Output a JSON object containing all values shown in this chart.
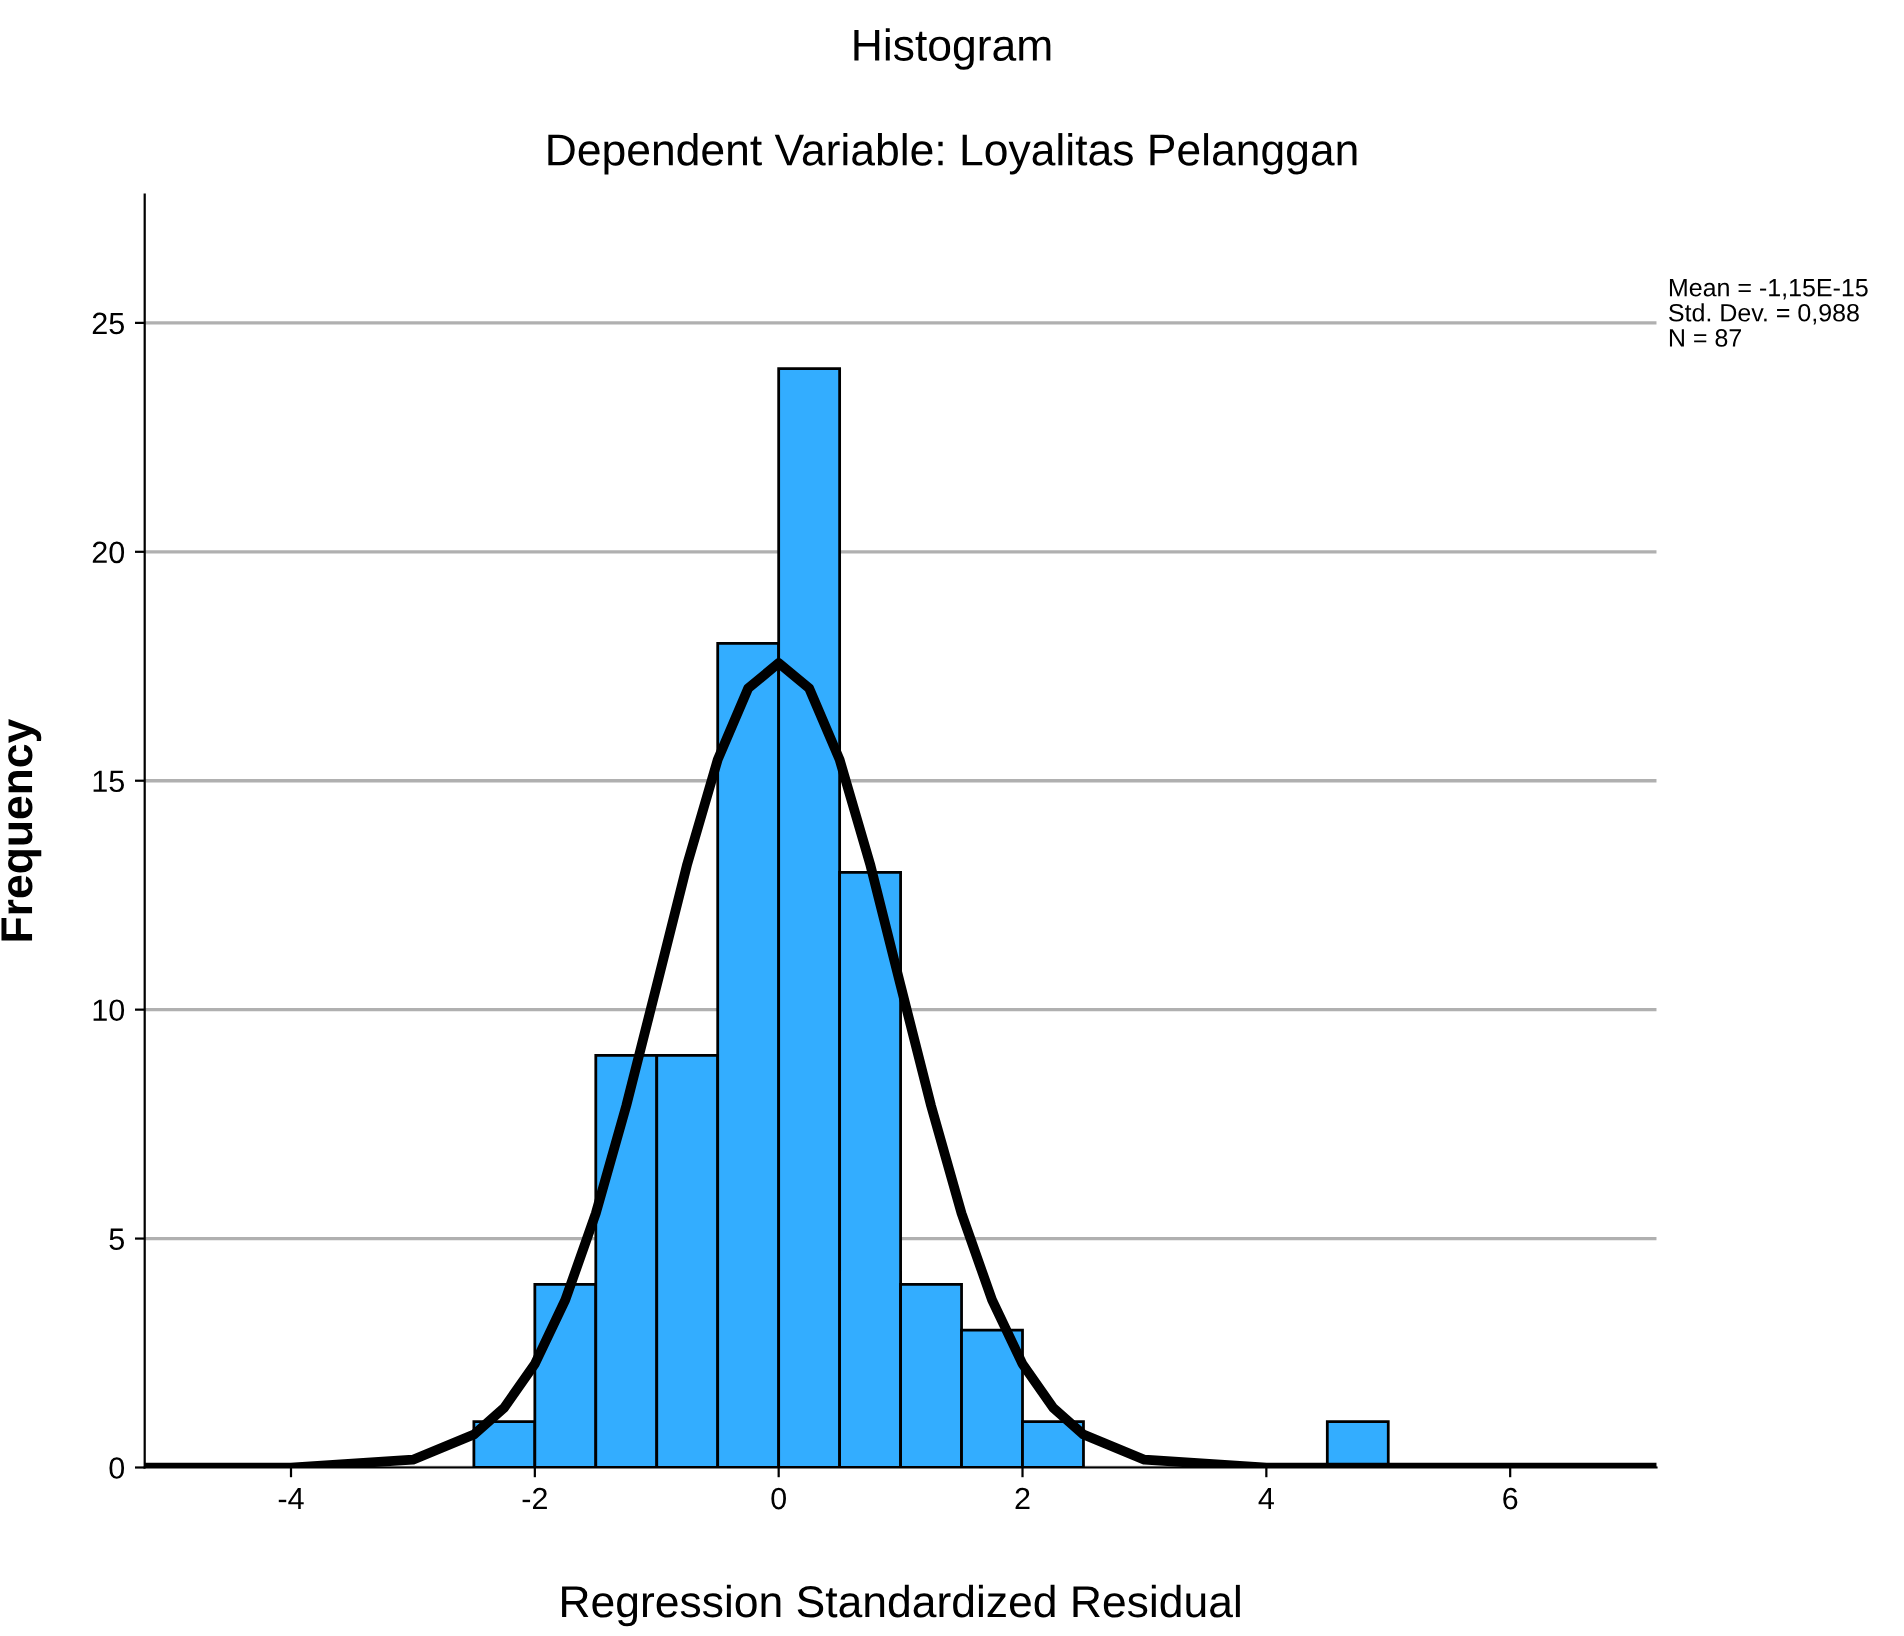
{
  "chart_data": {
    "type": "histogram",
    "title": "Histogram",
    "subtitle": "Dependent Variable: Loyalitas Pelanggan",
    "xlabel": "Regression Standardized Residual",
    "ylabel": "Frequency",
    "annotations": [
      "Mean = -1,15E-15\nStd. Dev. = 0,988\nN = 87"
    ],
    "series": [
      {
        "color": "#33adff",
        "bins": [
          -2.5,
          -2,
          -1.5,
          -1,
          -0.5,
          0,
          0.5,
          1,
          1.5,
          2,
          2.5,
          3,
          3.5,
          4,
          4.5,
          5
        ],
        "values": [
          1,
          4,
          9,
          9,
          18,
          24,
          13,
          4,
          3,
          1,
          0,
          0,
          0,
          0,
          1
        ]
      },
      {
        "type": "line",
        "color": "#000000",
        "x": [
          -5.2,
          -4,
          -3,
          -2.5,
          -2.25,
          -2,
          -1.75,
          -1.5,
          -1.25,
          -1,
          -0.75,
          -0.5,
          -0.25,
          0,
          0.25,
          0.5,
          0.75,
          1,
          1.25,
          1.5,
          1.75,
          2,
          2.25,
          2.5,
          3,
          4,
          5,
          6,
          7.2
        ],
        "values": [
          0,
          0,
          0.17,
          0.72,
          1.31,
          2.26,
          3.66,
          5.55,
          7.9,
          10.53,
          13.18,
          15.46,
          17.02,
          17.57,
          17.02,
          15.46,
          13.18,
          10.53,
          7.9,
          5.55,
          3.66,
          2.26,
          1.31,
          0.72,
          0.17,
          0,
          0,
          0,
          0
        ]
      }
    ],
    "xlim": [
      -5.2,
      7.2
    ],
    "ylim": [
      0,
      27.8
    ],
    "xticks": [
      -4,
      -2,
      0,
      2,
      4,
      6
    ],
    "yticks": [
      0,
      5,
      10,
      15,
      20,
      25
    ],
    "grid": "y",
    "legend": false
  }
}
